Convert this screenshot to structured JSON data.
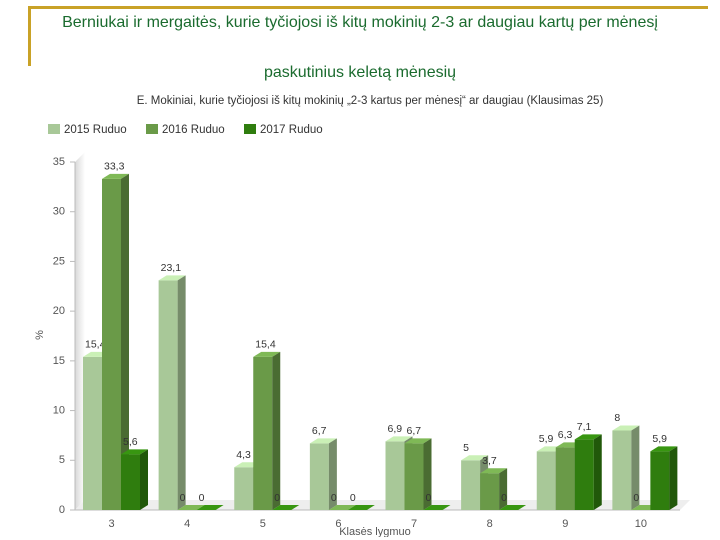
{
  "slide_title": [
    "Berniukai ir mergaitės, kurie tyčiojosi iš kitų mokinių 2-3 ar daugiau kartų per mėnesį",
    "paskutinius keletą mėnesių"
  ],
  "chart_data": {
    "type": "bar",
    "title": "E. Mokiniai, kurie tyčiojosi iš kitų mokinių „2-3 kartus per mėnesį“ ar daugiau (Klausimas 25)",
    "x_label": "Klasės lygmuo",
    "y_label": "%",
    "categories": [
      "3",
      "4",
      "5",
      "6",
      "7",
      "8",
      "9",
      "10"
    ],
    "series": [
      {
        "name": "2015 Ruduo",
        "color": "#a8c898",
        "values": [
          15.4,
          23.1,
          4.3,
          6.7,
          6.9,
          5,
          5.9,
          8
        ],
        "value_labels": [
          "15,4",
          "23,1",
          "4,3",
          "6,7",
          "6,9",
          "5",
          "5,9",
          "8"
        ]
      },
      {
        "name": "2016 Ruduo",
        "color": "#6a9a48",
        "values": [
          33.3,
          0,
          15.4,
          0,
          6.7,
          3.7,
          6.3,
          0
        ],
        "value_labels": [
          "33,3",
          "0",
          "15,4",
          "0",
          "6,7",
          "3,7",
          "6,3",
          "0"
        ]
      },
      {
        "name": "2017 Ruduo",
        "color": "#2f7d0e",
        "values": [
          5.6,
          0,
          0,
          0,
          0,
          0,
          7.1,
          5.9
        ],
        "value_labels": [
          "5,6",
          "0",
          "0",
          "0",
          "0",
          "0",
          "7,1",
          "5,9"
        ]
      }
    ],
    "ylim": [
      0,
      35
    ],
    "yticks": [
      0,
      5,
      10,
      15,
      20,
      25,
      30,
      35
    ],
    "grid": false,
    "legend": "top-left"
  }
}
